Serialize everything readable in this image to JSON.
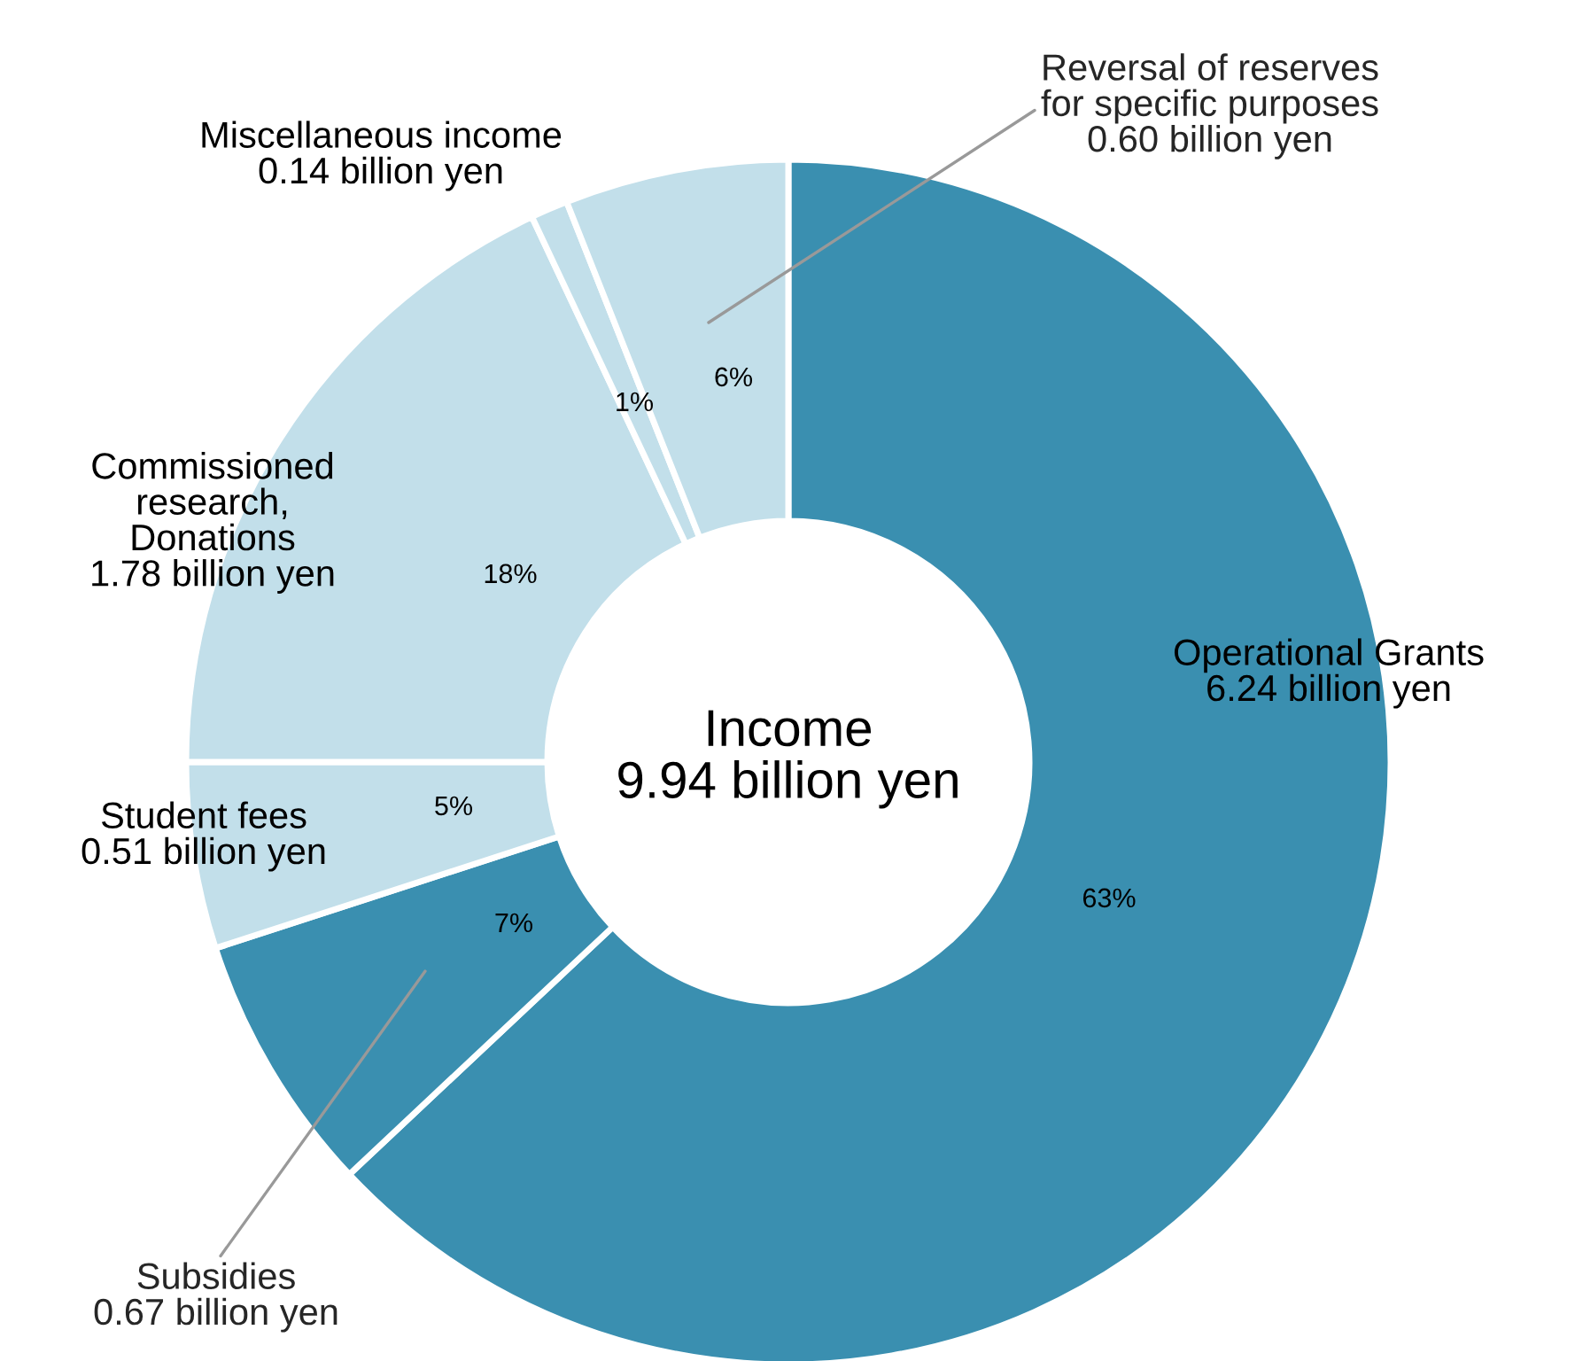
{
  "chart_data": {
    "type": "donut",
    "categories": [
      "Operational Grants\n6.24 billion yen",
      "Subsidies\n0.67 billion yen",
      "Student fees\n0.51 billion yen",
      "Commissioned\nresearch,\nDonations\n1.78 billion yen",
      "Miscellaneous income\n0.14 billion yen",
      "Reversal of reserves\nfor specific purposes\n0.60 billion yen"
    ],
    "values": [
      63,
      7,
      5,
      18,
      1,
      6
    ],
    "value_labels": [
      "63%",
      "7%",
      "5%",
      "18%",
      "1%",
      "6%"
    ],
    "colors": [
      "#3a8fb0",
      "#3a8fb0",
      "#c2dfea",
      "#c2dfea",
      "#c2dfea",
      "#c2dfea"
    ],
    "annotations": [
      "Income\n9.94 billion yen"
    ],
    "legend": false
  }
}
